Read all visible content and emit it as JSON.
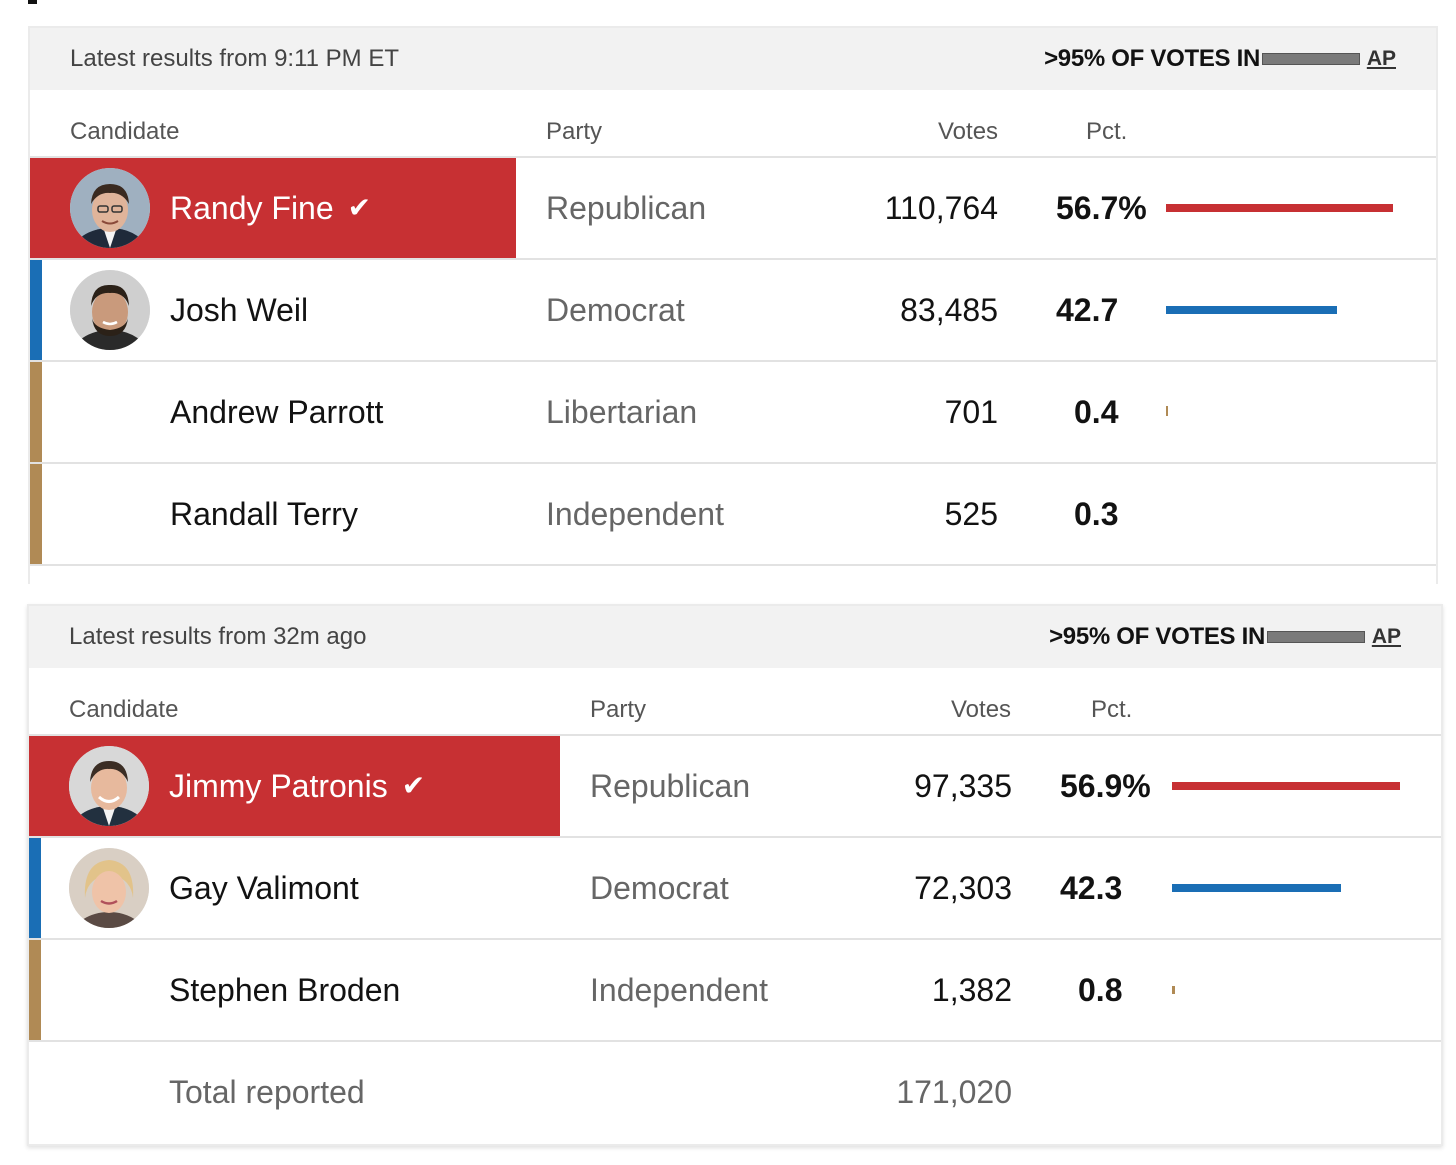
{
  "colors": {
    "republican": "#c73033",
    "democrat": "#1a6eb5",
    "libertarian": "#b08a55",
    "independent": "#b08a55"
  },
  "races": [
    {
      "latest": "Latest results from 9:11 PM ET",
      "votes_in": ">95% OF VOTES IN",
      "reporting_fraction": 1.0,
      "source": "AP",
      "columns": {
        "candidate": "Candidate",
        "party": "Party",
        "votes": "Votes",
        "pct": "Pct."
      },
      "candidates": [
        {
          "name": "Randy Fine",
          "party": "Republican",
          "votes": "110,764",
          "pct": "56.7%",
          "pct_value": 56.7,
          "winner": true,
          "photo": "portrait-photo"
        },
        {
          "name": "Josh Weil",
          "party": "Democrat",
          "votes": "83,485",
          "pct": "42.7",
          "pct_value": 42.7,
          "winner": false,
          "photo": "portrait-photo"
        },
        {
          "name": "Andrew Parrott",
          "party": "Libertarian",
          "votes": "701",
          "pct": "0.4",
          "pct_value": 0.4,
          "winner": false
        },
        {
          "name": "Randall Terry",
          "party": "Independent",
          "votes": "525",
          "pct": "0.3",
          "pct_value": 0.3,
          "winner": false
        }
      ]
    },
    {
      "latest": "Latest results from 32m ago",
      "votes_in": ">95% OF VOTES IN",
      "reporting_fraction": 1.0,
      "source": "AP",
      "columns": {
        "candidate": "Candidate",
        "party": "Party",
        "votes": "Votes",
        "pct": "Pct."
      },
      "candidates": [
        {
          "name": "Jimmy Patronis",
          "party": "Republican",
          "votes": "97,335",
          "pct": "56.9%",
          "pct_value": 56.9,
          "winner": true,
          "photo": "portrait-photo"
        },
        {
          "name": "Gay Valimont",
          "party": "Democrat",
          "votes": "72,303",
          "pct": "42.3",
          "pct_value": 42.3,
          "winner": false,
          "photo": "portrait-photo"
        },
        {
          "name": "Stephen Broden",
          "party": "Independent",
          "votes": "1,382",
          "pct": "0.8",
          "pct_value": 0.8,
          "winner": false
        }
      ],
      "total": {
        "label": "Total reported",
        "value": "171,020"
      }
    }
  ]
}
